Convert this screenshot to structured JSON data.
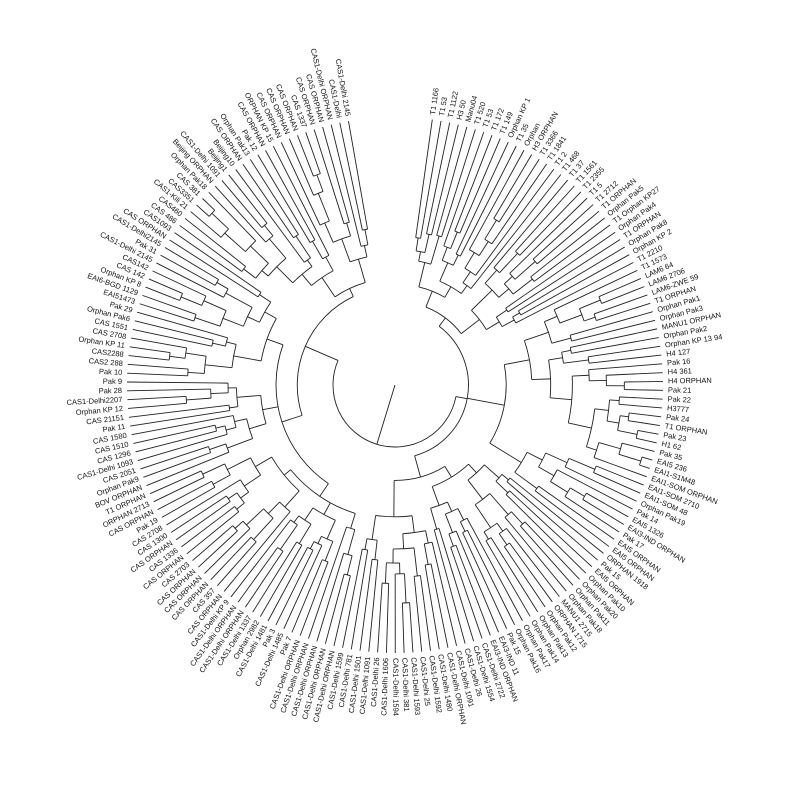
{
  "leaves": [
    "T1 1166",
    "T1 53",
    "T1 1122",
    "H3 50",
    "Manu04",
    "T1 520",
    "T1 53",
    "T1 172",
    "T1 149",
    "Orphan KP 1",
    "T1 35",
    "Orphan",
    "H3 ORPHAN",
    "T1 3366",
    "T1 1841",
    "T1 2",
    "T1 468",
    "T1 37",
    "T1 1561",
    "T1 2355",
    "T1 5",
    "T1 2712",
    "T1 ORPHAN",
    "Orphan Pak5",
    "T1 Orphan KP27",
    "Orphan Pak4",
    "T1 ORPHAN",
    "Orphan Pak8",
    "Orphan KP 2",
    "T1 2210",
    "T1 1573",
    "LAM6 64",
    "LAM6 2706",
    "LAM6-ZWE 59",
    "T1 ORPHAN",
    "Orphan Pak1",
    "Orphan Pak3",
    "MANU1 ORPHAN",
    "Orphan Pak2",
    "Orphan KP 13 94",
    "H4 127",
    "Pak 16",
    "H4 361",
    "H4 ORPHAN",
    "Pak 21",
    "Pak 22",
    "H3777",
    "Pak 24",
    "T1 ORPHAN",
    "Pak 23",
    "H1 62",
    "Pak 35",
    "EAI5 236",
    "EAI1-S1M48",
    "EAI1-SOM ORPHAN",
    "EAI1-SOM 2710",
    "EAI1-SOM 48",
    "Orphan Pak19",
    "Pak 14",
    "EAI5 1326",
    "EAI3-IND ORPHAN",
    "Pak 17",
    "EAI5 ORPHAN",
    "EAI5 ORPHAN",
    "ORPHAN 1918",
    "Pak 15",
    "EAI5 ORPHAN",
    "Orphan Pak10",
    "Orphan Pak20",
    "Orphan Pak11",
    "Orphan Pak18",
    "MANU1 2715",
    "ORPHAN 1715",
    "Orphan Pak12",
    "Orphan Pak13",
    "Orphan Pak14",
    "Orphan Pak17",
    "Orphan Pak16",
    "Pak 15",
    "EAI3-IND 11",
    "EAI3-IND ORPHAN",
    "CAS1-Delhi 2722",
    "CAS1-Delhi 1554",
    "CAS1-Delhi 26",
    "CAS1-Delhi 1091",
    "CAS1-Delhi ORPHAN",
    "CAS1-Delhi 1480",
    "CAS1-Delhi 1592",
    "CAS1-Delhi 25",
    "CAS1-Delhi 1593",
    "CAS1-Delhi 381",
    "CAS1-Delhi 1594",
    "CAS1-Delhi 1606",
    "CAS1-Delhi 26",
    "CAS1-Delhi 1091",
    "CAS1-Delhi 1501",
    "CAS1-Delhi 781",
    "CAS1-Delhi 1599",
    "CAS1-Delhi ORPHAN",
    "CAS1-Delhi ORPHAN",
    "CAS1-Delhi ORPHAN",
    "CAS1-Delhi ORPHAN",
    "CAS1-Delhi ORPHAN",
    "Pak 7",
    "CAS1-Delhi 1485",
    "Pak 3",
    "CAS1-Delhi 1481",
    "Orphan 2982",
    "CAS1-Delhi 1337",
    "CAS1-Delhi ORPHAN",
    "CAS1-Delhi ORPHAN",
    "CAS1-Delhi KP 9",
    "CAS ORPHAN",
    "CAS 357",
    "CAS ORPHAN",
    "CAS ORPHAN",
    "CAS ORPHAN",
    "CAS 2703",
    "CAS ORPHAN",
    "CAS 1336",
    "CAS ORPHAN",
    "CAS 1300",
    "CAS 2708",
    "Pak 19",
    "CAS ORPHAN",
    "ORPHAN 2713",
    "T1 ORPHAN",
    "BOV ORPHAN",
    "Orphan Pak9",
    "CAS 2051",
    "CAS1-Delhi 1093",
    "CAS 1296",
    "CAS 1510",
    "CAS 1580",
    "Pak 11",
    "CAS 21151",
    "Orphan KP 12",
    "CAS1-Delhi2207",
    "Pak 28",
    "Pak 9",
    "Pak 10",
    "CAS2 288",
    "CAS2288",
    "Orphan KP 11",
    "CAS 2708",
    "CAS 1551",
    "Orphan Pak6",
    "Pak 29",
    "EAI51473",
    "EAI6-BGD 1129",
    "Orphan KP 8",
    "CAS 142",
    "CAS142",
    "CAS1-Delhi 2145",
    "Pak 31",
    "CAS1-Delhi2145",
    "CAS ORPHAN",
    "CAS1093",
    "CAS 486",
    "CAS460",
    "CAS1-Kili 21",
    "CAS3351",
    "CAS 381",
    "Orphan Pak18",
    "Beijing ORPHAN",
    "CAS1-Delhi 1091",
    "Beijing1",
    "Beijing10",
    "CAS ORPHAN",
    "Orphan Pak13",
    "Pak 12",
    "CAS ORPHAN",
    "ORPHAN KP 15",
    "CAS ORPHAN",
    "CAS ORPHAN",
    "CAS ORPHAN",
    "CAS 1337",
    "CAS ORPHAN",
    "CAS ORPHAN",
    "CAS1-Delhi ORPHAN",
    "CAS1-Delhi",
    "CAS1-Delhi 2145"
  ]
}
